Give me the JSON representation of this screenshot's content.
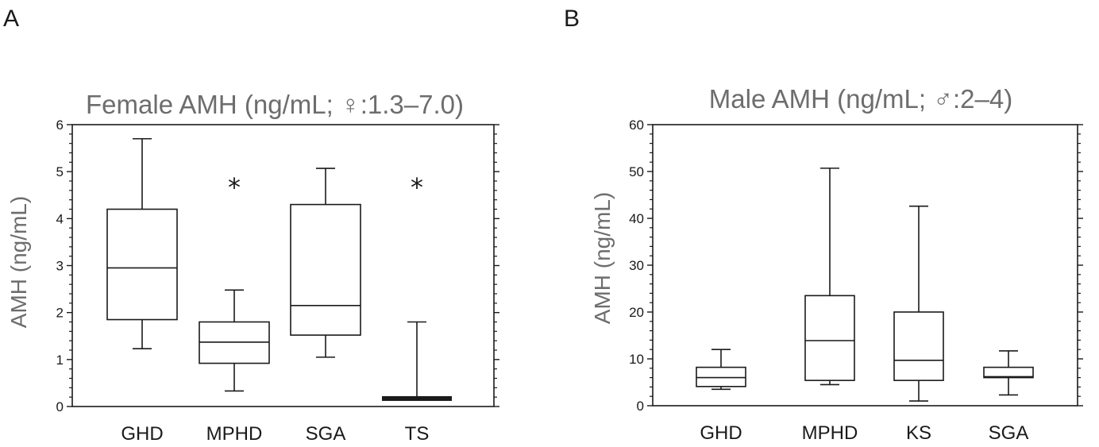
{
  "panels": [
    {
      "letter": "A"
    },
    {
      "letter": "B"
    }
  ],
  "chart_data": [
    {
      "type": "box",
      "title": "Female AMH (ng/mL; ♀:1.3–7.0)",
      "xlabel": "",
      "ylabel": "AMH (ng/mL)",
      "ylim": [
        0,
        6
      ],
      "yticks": [
        0,
        1,
        2,
        3,
        4,
        5,
        6
      ],
      "minor_ticks_per_major": 4,
      "categories": [
        "GHD",
        "MPHD",
        "SGA",
        "TS"
      ],
      "boxes": [
        {
          "min": 1.23,
          "q1": 1.85,
          "median": 2.95,
          "q3": 4.2,
          "max": 5.7
        },
        {
          "min": 0.33,
          "q1": 0.92,
          "median": 1.37,
          "q3": 1.8,
          "max": 2.48
        },
        {
          "min": 1.05,
          "q1": 1.52,
          "median": 2.15,
          "q3": 4.3,
          "max": 5.07
        },
        {
          "min": 0.17,
          "q1": 0.17,
          "median": 0.17,
          "q3": 0.17,
          "max": 1.8
        }
      ],
      "annotations": [
        {
          "category": "MPHD",
          "text": "*",
          "y": 4.85
        },
        {
          "category": "TS",
          "text": "*",
          "y": 4.85
        }
      ],
      "grid": false
    },
    {
      "type": "box",
      "title": "Male AMH (ng/mL; ♂:2–4)",
      "xlabel": "",
      "ylabel": "AMH (ng/mL)",
      "ylim": [
        0,
        60
      ],
      "yticks": [
        0,
        10,
        20,
        30,
        40,
        50,
        60
      ],
      "minor_ticks_per_major": 4,
      "categories": [
        "GHD",
        "MPHD",
        "KS",
        "SGA"
      ],
      "boxes": [
        {
          "min": 3.5,
          "q1": 4.1,
          "median": 6.0,
          "q3": 8.2,
          "max": 12.0
        },
        {
          "min": 4.5,
          "q1": 5.4,
          "median": 13.9,
          "q3": 23.5,
          "max": 50.7
        },
        {
          "min": 1.0,
          "q1": 5.4,
          "median": 9.7,
          "q3": 20.0,
          "max": 42.6
        },
        {
          "min": 2.3,
          "q1": 6.0,
          "median": 6.2,
          "q3": 8.2,
          "max": 11.7
        }
      ],
      "annotations": [],
      "grid": false
    }
  ]
}
